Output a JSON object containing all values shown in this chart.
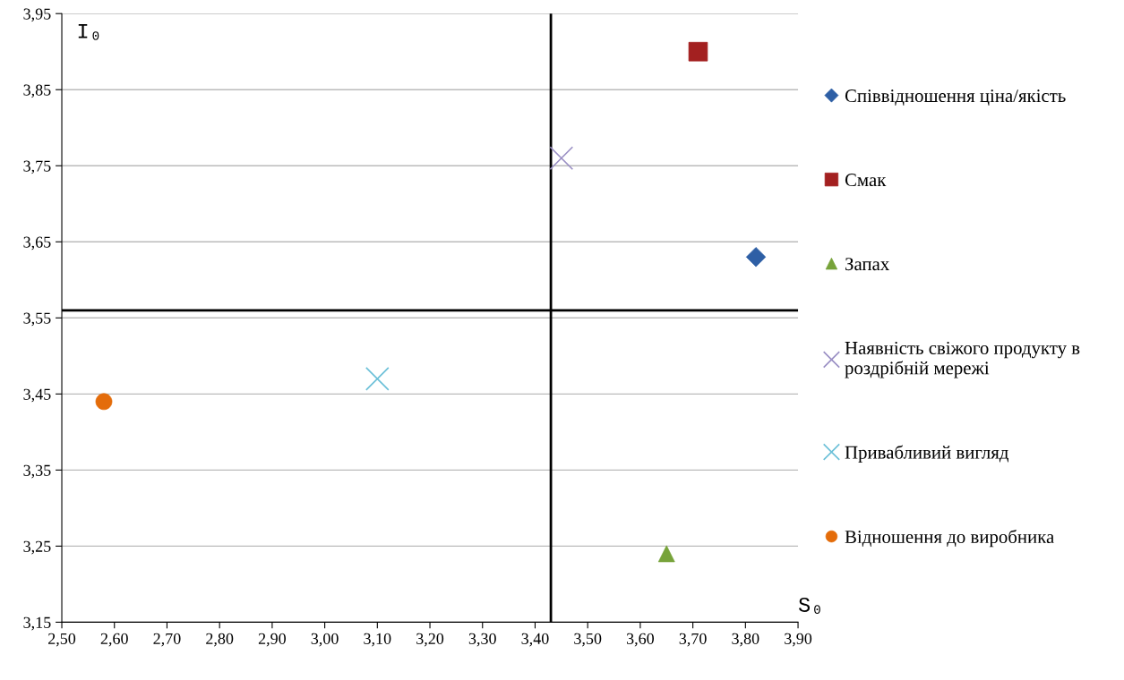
{
  "chart_data": {
    "type": "scatter",
    "xlabel": "S₀",
    "ylabel": "I₀",
    "xlim": [
      2.5,
      3.9
    ],
    "ylim": [
      3.15,
      3.95
    ],
    "xticks": [
      {
        "value": 2.5,
        "label": "2,50"
      },
      {
        "value": 2.6,
        "label": "2,60"
      },
      {
        "value": 2.7,
        "label": "2,70"
      },
      {
        "value": 2.8,
        "label": "2,80"
      },
      {
        "value": 2.9,
        "label": "2,90"
      },
      {
        "value": 3.0,
        "label": "3,00"
      },
      {
        "value": 3.1,
        "label": "3,10"
      },
      {
        "value": 3.2,
        "label": "3,20"
      },
      {
        "value": 3.3,
        "label": "3,30"
      },
      {
        "value": 3.4,
        "label": "3,40"
      },
      {
        "value": 3.5,
        "label": "3,50"
      },
      {
        "value": 3.6,
        "label": "3,60"
      },
      {
        "value": 3.7,
        "label": "3,70"
      },
      {
        "value": 3.8,
        "label": "3,80"
      },
      {
        "value": 3.9,
        "label": "3,90"
      }
    ],
    "yticks": [
      {
        "value": 3.15,
        "label": "3,15"
      },
      {
        "value": 3.25,
        "label": "3,25"
      },
      {
        "value": 3.35,
        "label": "3,35"
      },
      {
        "value": 3.45,
        "label": "3,45"
      },
      {
        "value": 3.55,
        "label": "3,55"
      },
      {
        "value": 3.65,
        "label": "3,65"
      },
      {
        "value": 3.75,
        "label": "3,75"
      },
      {
        "value": 3.85,
        "label": "3,85"
      },
      {
        "value": 3.95,
        "label": "3,95"
      }
    ],
    "grid": "y",
    "legend": "right",
    "ref_lines": [
      {
        "axis": "x",
        "value": 3.43,
        "color": "#000000"
      },
      {
        "axis": "y",
        "value": 3.56,
        "color": "#000000"
      }
    ],
    "series": [
      {
        "name": "Співвідношення ціна/якість",
        "color": "#2e5fa5",
        "marker": "diamond",
        "x": [
          3.82
        ],
        "values": [
          3.63
        ]
      },
      {
        "name": "Смак",
        "color": "#a32020",
        "marker": "square",
        "x": [
          3.71
        ],
        "values": [
          3.9
        ]
      },
      {
        "name": "Запах",
        "color": "#77a33a",
        "marker": "triangle",
        "x": [
          3.65
        ],
        "values": [
          3.24
        ]
      },
      {
        "name": "Наявність свіжого продукту в\nроздрібній мережі",
        "color": "#9a8fc4",
        "marker": "cross",
        "x": [
          3.45
        ],
        "values": [
          3.76
        ]
      },
      {
        "name": "Привабливий вигляд",
        "color": "#6cc0d8",
        "marker": "cross",
        "x": [
          3.1
        ],
        "values": [
          3.47
        ]
      },
      {
        "name": "Відношення до виробника",
        "color": "#e46c0a",
        "marker": "circle",
        "x": [
          2.58
        ],
        "values": [
          3.44
        ]
      }
    ]
  }
}
